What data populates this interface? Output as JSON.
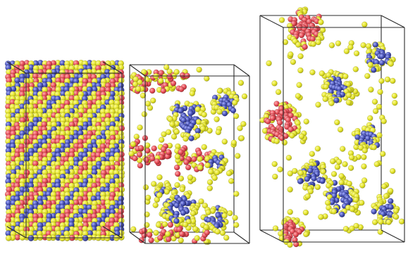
{
  "figure": {
    "panels": [
      {
        "name": "panel-lamellar-crystal",
        "pattern": "lamellar",
        "colors": [
          "yellow",
          "red",
          "blue"
        ]
      },
      {
        "name": "panel-mixed-clusters",
        "pattern": "clusters-mixed",
        "colors": [
          "yellow",
          "red",
          "blue"
        ]
      },
      {
        "name": "panel-separated-clusters",
        "pattern": "clusters-separated",
        "colors": [
          "yellow",
          "red",
          "blue"
        ]
      }
    ],
    "colors": {
      "yellow": "#e6e62e",
      "red": "#e8505a",
      "blue": "#4a54b8",
      "edge": "#2a2a2a",
      "background": "#ffffff"
    }
  }
}
